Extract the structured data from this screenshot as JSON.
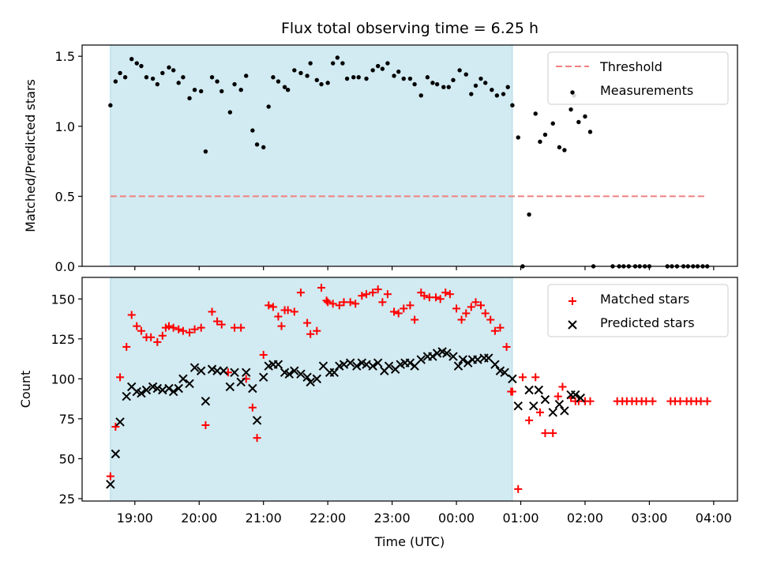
{
  "chart_data": {
    "type": "scatter",
    "title": "Flux total observing time = 6.25 h",
    "xlabel": "Time (UTC)",
    "x_unit": "hours since 19:00 UTC",
    "xlim": [
      -0.82,
      9.37
    ],
    "x_ticks": [
      {
        "value": 0,
        "label": "19:00"
      },
      {
        "value": 1,
        "label": "20:00"
      },
      {
        "value": 2,
        "label": "21:00"
      },
      {
        "value": 3,
        "label": "22:00"
      },
      {
        "value": 4,
        "label": "23:00"
      },
      {
        "value": 5,
        "label": "00:00"
      },
      {
        "value": 6,
        "label": "01:00"
      },
      {
        "value": 7,
        "label": "02:00"
      },
      {
        "value": 8,
        "label": "03:00"
      },
      {
        "value": 9,
        "label": "04:00"
      }
    ],
    "shaded_interval": [
      -0.38,
      5.87
    ],
    "shade_color": "#add8e6",
    "panels": [
      {
        "name": "ratio",
        "ylabel": "Matched/Predicted stars",
        "ylim": [
          0,
          1.58
        ],
        "y_ticks": [
          0,
          0.5,
          1.0,
          1.5
        ],
        "y_tick_labels": [
          "0.0",
          "0.5",
          "1.0",
          "1.5"
        ],
        "legend": {
          "position": "top-right",
          "entries": [
            "Threshold",
            "Measurements"
          ]
        },
        "threshold": {
          "name": "Threshold",
          "value": 0.5,
          "x_range": [
            -0.38,
            8.9
          ],
          "color": "#f08080",
          "style": "dashed"
        },
        "series": [
          {
            "name": "Measurements",
            "marker": "dot",
            "color": "#000000",
            "x": [
              -0.38,
              -0.3,
              -0.23,
              -0.15,
              -0.05,
              0.03,
              0.1,
              0.18,
              0.28,
              0.35,
              0.43,
              0.53,
              0.6,
              0.68,
              0.75,
              0.85,
              0.93,
              1.03,
              1.1,
              1.2,
              1.28,
              1.35,
              1.48,
              1.55,
              1.65,
              1.73,
              1.83,
              1.9,
              2.0,
              2.08,
              2.15,
              2.23,
              2.33,
              2.38,
              2.48,
              2.58,
              2.68,
              2.73,
              2.83,
              2.9,
              3.0,
              3.08,
              3.15,
              3.23,
              3.3,
              3.4,
              3.48,
              3.6,
              3.7,
              3.78,
              3.85,
              3.93,
              4.03,
              4.1,
              4.18,
              4.28,
              4.35,
              4.45,
              4.55,
              4.63,
              4.7,
              4.8,
              4.88,
              4.95,
              5.05,
              5.15,
              5.23,
              5.3,
              5.38,
              5.45,
              5.55,
              5.63,
              5.73,
              5.8,
              5.87,
              5.96,
              6.03,
              6.13,
              6.23,
              6.3,
              6.38,
              6.5,
              6.6,
              6.68,
              6.78,
              6.83,
              6.9,
              7.0,
              7.08,
              7.13,
              7.43,
              7.53,
              7.6,
              7.68,
              7.78,
              7.85,
              7.93,
              8.0,
              8.28,
              8.35,
              8.43,
              8.53,
              8.6,
              8.68,
              8.75,
              8.83,
              8.9
            ],
            "y": [
              1.15,
              1.32,
              1.38,
              1.35,
              1.48,
              1.45,
              1.43,
              1.35,
              1.34,
              1.3,
              1.38,
              1.42,
              1.4,
              1.31,
              1.35,
              1.2,
              1.26,
              1.25,
              0.82,
              1.35,
              1.32,
              1.25,
              1.1,
              1.3,
              1.26,
              1.36,
              0.97,
              0.87,
              0.85,
              1.14,
              1.35,
              1.32,
              1.28,
              1.26,
              1.4,
              1.38,
              1.36,
              1.45,
              1.33,
              1.3,
              1.31,
              1.45,
              1.49,
              1.45,
              1.34,
              1.35,
              1.35,
              1.34,
              1.4,
              1.43,
              1.41,
              1.45,
              1.36,
              1.39,
              1.34,
              1.34,
              1.3,
              1.22,
              1.35,
              1.31,
              1.3,
              1.28,
              1.28,
              1.33,
              1.4,
              1.37,
              1.23,
              1.29,
              1.34,
              1.31,
              1.26,
              1.22,
              1.23,
              1.28,
              1.15,
              0.92,
              0.0,
              0.37,
              1.09,
              0.89,
              0.94,
              1.02,
              0.85,
              0.83,
              1.12,
              1.22,
              1.03,
              1.07,
              0.96,
              0.0,
              0.0,
              0.0,
              0.0,
              0.0,
              0.0,
              0.0,
              0.0,
              0.0,
              0.0,
              0.0,
              0.0,
              0.0,
              0.0,
              0.0,
              0.0,
              0.0,
              0.0
            ]
          }
        ]
      },
      {
        "name": "count",
        "ylabel": "Count",
        "ylim": [
          23.5,
          163.5
        ],
        "y_ticks": [
          25,
          50,
          75,
          100,
          125,
          150
        ],
        "y_tick_labels": [
          "25",
          "50",
          "75",
          "100",
          "125",
          "150"
        ],
        "legend": {
          "position": "top-right",
          "entries": [
            "Matched stars",
            "Predicted stars"
          ]
        },
        "series": [
          {
            "name": "Matched stars",
            "marker": "plus",
            "color": "#ff0000",
            "x": [
              -0.38,
              -0.3,
              -0.23,
              -0.13,
              -0.05,
              0.03,
              0.1,
              0.18,
              0.25,
              0.35,
              0.43,
              0.48,
              0.53,
              0.6,
              0.68,
              0.75,
              0.85,
              0.93,
              1.03,
              1.1,
              1.2,
              1.28,
              1.35,
              1.45,
              1.55,
              1.65,
              1.73,
              1.83,
              1.9,
              2.0,
              2.08,
              2.15,
              2.23,
              2.28,
              2.33,
              2.38,
              2.48,
              2.58,
              2.68,
              2.73,
              2.83,
              2.9,
              2.98,
              3.0,
              3.08,
              3.18,
              3.25,
              3.35,
              3.43,
              3.53,
              3.6,
              3.7,
              3.78,
              3.85,
              3.93,
              4.03,
              4.1,
              4.18,
              4.28,
              4.35,
              4.45,
              4.5,
              4.58,
              4.68,
              4.75,
              4.83,
              4.9,
              5.0,
              5.08,
              5.15,
              5.23,
              5.3,
              5.38,
              5.45,
              5.53,
              5.6,
              5.68,
              5.78,
              5.85,
              5.87,
              5.96,
              6.03,
              6.13,
              6.23,
              6.3,
              6.38,
              6.5,
              6.58,
              6.65,
              6.78,
              6.85,
              6.9,
              7.0,
              7.08,
              7.5,
              7.58,
              7.65,
              7.73,
              7.8,
              7.88,
              7.95,
              8.05,
              8.33,
              8.4,
              8.48,
              8.58,
              8.65,
              8.73,
              8.8,
              8.9
            ],
            "y": [
              39,
              70,
              101,
              120,
              140,
              133,
              130,
              126,
              126,
              123,
              127,
              132,
              133,
              132,
              131,
              130,
              129,
              131,
              132,
              71,
              142,
              136,
              134,
              104,
              132,
              132,
              100,
              82,
              63,
              115,
              146,
              145,
              139,
              133,
              143,
              143,
              142,
              154,
              135,
              128,
              130,
              157,
              149,
              148,
              147,
              146,
              148,
              148,
              147,
              152,
              153,
              154,
              156,
              148,
              153,
              142,
              141,
              144,
              146,
              137,
              154,
              152,
              151,
              151,
              150,
              154,
              153,
              144,
              137,
              141,
              145,
              148,
              146,
              141,
              137,
              130,
              132,
              120,
              92,
              92,
              31,
              101,
              74,
              101,
              79,
              66,
              66,
              89,
              95,
              88,
              86,
              86,
              86,
              86,
              86,
              86,
              86,
              86,
              86,
              86,
              86,
              86,
              86,
              86,
              86,
              86,
              86,
              86,
              86,
              86
            ],
            "label_note": ""
          },
          {
            "name": "Predicted stars",
            "marker": "x",
            "color": "#000000",
            "x": [
              -0.38,
              -0.3,
              -0.23,
              -0.13,
              -0.05,
              0.03,
              0.1,
              0.18,
              0.28,
              0.35,
              0.43,
              0.53,
              0.6,
              0.68,
              0.75,
              0.85,
              0.93,
              1.03,
              1.1,
              1.2,
              1.28,
              1.38,
              1.48,
              1.55,
              1.65,
              1.73,
              1.83,
              1.9,
              2.0,
              2.08,
              2.15,
              2.23,
              2.33,
              2.4,
              2.48,
              2.58,
              2.68,
              2.73,
              2.83,
              2.93,
              3.03,
              3.1,
              3.18,
              3.25,
              3.35,
              3.45,
              3.53,
              3.6,
              3.7,
              3.78,
              3.88,
              3.95,
              4.05,
              4.13,
              4.2,
              4.28,
              4.35,
              4.45,
              4.55,
              4.63,
              4.7,
              4.78,
              4.85,
              4.95,
              5.03,
              5.1,
              5.18,
              5.25,
              5.33,
              5.43,
              5.5,
              5.6,
              5.68,
              5.75,
              5.87,
              5.96,
              6.13,
              6.2,
              6.28,
              6.38,
              6.5,
              6.6,
              6.68,
              6.78,
              6.85,
              6.93
            ],
            "y": [
              34,
              53,
              73,
              89,
              95,
              92,
              91,
              93,
              95,
              94,
              93,
              94,
              92,
              94,
              100,
              97,
              107,
              105,
              86,
              106,
              105,
              105,
              95,
              104,
              98,
              104,
              94,
              74,
              101,
              108,
              109,
              109,
              104,
              103,
              105,
              103,
              101,
              98,
              100,
              108,
              104,
              104,
              108,
              109,
              110,
              108,
              110,
              109,
              108,
              110,
              105,
              108,
              106,
              109,
              110,
              110,
              108,
              112,
              114,
              114,
              116,
              117,
              116,
              114,
              108,
              112,
              110,
              112,
              112,
              113,
              113,
              109,
              105,
              104,
              100,
              83,
              93,
              83,
              93,
              87,
              79,
              84,
              80,
              90,
              90,
              88
            ]
          }
        ]
      }
    ]
  }
}
